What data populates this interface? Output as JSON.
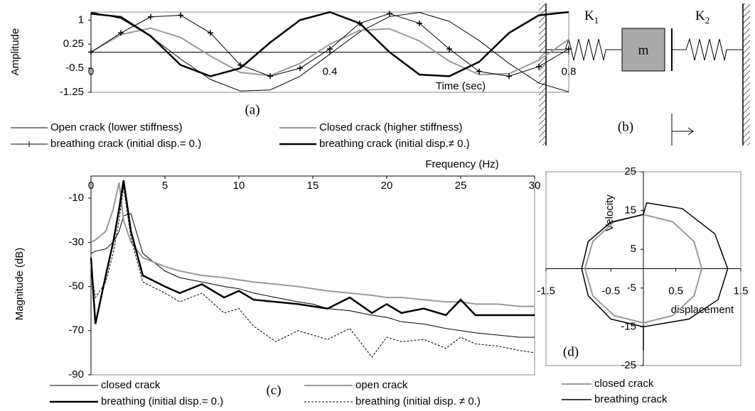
{
  "chart_data": [
    {
      "type": "line",
      "label": "(a)",
      "x_label": "Time (sec)",
      "y_label": "Amplitude",
      "x": [
        0,
        0.05,
        0.1,
        0.15,
        0.2,
        0.25,
        0.3,
        0.35,
        0.4,
        0.45,
        0.5,
        0.55,
        0.6,
        0.65,
        0.7,
        0.75,
        0.8
      ],
      "xlim": [
        0,
        0.8
      ],
      "xticks": [
        0,
        0.4,
        0.8
      ],
      "ylim": [
        -1.25,
        1.25
      ],
      "yticks": [
        -1.25,
        -0.5,
        0.25,
        1
      ],
      "series": [
        {
          "name": "Open crack (lower stiffness)",
          "color": "#000000",
          "line_width": 1,
          "line_style": "solid",
          "values": [
            1.25,
            1.05,
            0.49,
            -0.21,
            -0.85,
            -1.21,
            -1.18,
            -0.75,
            -0.06,
            0.63,
            1.11,
            1.24,
            0.96,
            0.36,
            -0.35,
            -0.96,
            -1.24
          ]
        },
        {
          "name": "Closed crack (higher stiffness)",
          "color": "#999999",
          "line_width": 2,
          "line_style": "solid",
          "values": [
            0,
            0.55,
            0.75,
            0.46,
            -0.12,
            -0.63,
            -0.73,
            -0.35,
            0.25,
            0.68,
            0.73,
            0.35,
            -0.28,
            -0.7,
            -0.67,
            -0.25,
            0.4
          ]
        },
        {
          "name": "breathing crack (initial disp.= 0.)",
          "color": "#000000",
          "line_width": 1,
          "line_style": "solid",
          "marker": "+",
          "values": [
            0,
            0.6,
            1.1,
            1.15,
            0.6,
            -0.4,
            -0.75,
            -0.5,
            0.1,
            0.9,
            1.2,
            0.9,
            0.1,
            -0.6,
            -0.75,
            -0.45,
            0.1
          ]
        },
        {
          "name": "breathing crack (initial disp.≠ 0.)",
          "color": "#000000",
          "line_width": 2.5,
          "line_style": "solid",
          "values": [
            1.2,
            1.1,
            0.5,
            -0.4,
            -0.75,
            -0.5,
            0.3,
            1.0,
            1.25,
            0.9,
            0.0,
            -0.7,
            -0.75,
            -0.3,
            0.6,
            1.15,
            1.25
          ]
        }
      ]
    },
    {
      "type": "line",
      "label": "(c)",
      "x_label": "Frequency (Hz)",
      "y_label": "Magnitude (dB)",
      "x": [
        0,
        0.3,
        1,
        1.5,
        1.9,
        2.2,
        2.7,
        3.5,
        5,
        6,
        7.5,
        9,
        10,
        11,
        12.5,
        14,
        15,
        16,
        17.5,
        19,
        20,
        21,
        22.5,
        24,
        25,
        26,
        27.5,
        29,
        30
      ],
      "xlim": [
        0,
        30
      ],
      "xticks": [
        0,
        5,
        10,
        15,
        20,
        25,
        30
      ],
      "ylim": [
        -90,
        0
      ],
      "yticks": [
        -90,
        -70,
        -50,
        -30,
        -10
      ],
      "series": [
        {
          "name": "closed crack",
          "color": "#000000",
          "line_width": 1,
          "line_style": "solid",
          "values": [
            -35,
            -34,
            -33,
            -30,
            -25,
            -18,
            -17,
            -35,
            -43,
            -46,
            -48,
            -50,
            -51,
            -53,
            -55,
            -57,
            -58,
            -60,
            -61,
            -63,
            -64,
            -66,
            -67,
            -69,
            -70,
            -71,
            -72,
            -73,
            -73
          ]
        },
        {
          "name": "open crack",
          "color": "#999999",
          "line_width": 2,
          "line_style": "solid",
          "values": [
            -30,
            -29,
            -25,
            -15,
            -3,
            -20,
            -30,
            -37,
            -41,
            -43,
            -45,
            -46,
            -47,
            -48,
            -49,
            -50,
            -51,
            -52,
            -53,
            -54,
            -55,
            -55,
            -56,
            -57,
            -57,
            -58,
            -58,
            -59,
            -59
          ]
        },
        {
          "name": "breathing (initial disp.= 0.)",
          "color": "#000000",
          "line_width": 2.5,
          "line_style": "solid",
          "values": [
            -37,
            -67,
            -45,
            -30,
            -15,
            -2,
            -25,
            -45,
            -50,
            -53,
            -49,
            -55,
            -52,
            -56,
            -57,
            -58,
            -59,
            -60,
            -55,
            -62,
            -58,
            -62,
            -60,
            -63,
            -56,
            -63,
            -63,
            -63,
            -63
          ]
        },
        {
          "name": "breathing (initial disp. ≠ 0.)",
          "color": "#000000",
          "line_width": 1,
          "line_style": "dashed",
          "values": [
            -42,
            -55,
            -48,
            -35,
            -20,
            -5,
            -28,
            -48,
            -53,
            -57,
            -53,
            -62,
            -60,
            -68,
            -75,
            -70,
            -72,
            -74,
            -69,
            -82,
            -73,
            -75,
            -74,
            -78,
            -73,
            -76,
            -77,
            -79,
            -80
          ]
        }
      ]
    },
    {
      "type": "phase",
      "label": "(d)",
      "x_label": "displacement",
      "y_label": "Velocity",
      "xlim": [
        -1.5,
        1.5
      ],
      "xticks": [
        -1.5,
        -0.5,
        0.5,
        1.5
      ],
      "ylim": [
        -25,
        25
      ],
      "yticks": [
        -25,
        -15,
        -5,
        5,
        15,
        25
      ],
      "series": [
        {
          "name": "closed crack",
          "color": "#999999",
          "line_width": 2,
          "line_style": "solid",
          "x": [
            0.9,
            0.78,
            0.45,
            0,
            -0.45,
            -0.78,
            -0.9,
            -0.78,
            -0.45,
            0,
            0.45,
            0.78,
            0.9
          ],
          "values": [
            0,
            -7,
            -12.1,
            -14,
            -12.1,
            -7,
            0,
            7,
            12.1,
            14,
            12.1,
            7,
            0
          ]
        },
        {
          "name": "breathing crack",
          "color": "#000000",
          "line_width": 1.5,
          "line_style": "solid",
          "x": [
            1.3,
            1.15,
            0.7,
            0,
            0,
            0,
            -0.5,
            -0.85,
            -0.95,
            -0.85,
            -0.5,
            0,
            0.05,
            0.6,
            1.1,
            1.3
          ],
          "values": [
            0,
            -8,
            -13,
            -15,
            -21,
            -15,
            -13,
            -7,
            0,
            7,
            12,
            14,
            17,
            15.5,
            9,
            0
          ]
        }
      ]
    }
  ],
  "diagram": {
    "springs": [
      {
        "label": "K",
        "subscript": "1"
      },
      {
        "label": "K",
        "subscript": "2"
      }
    ],
    "mass": "m",
    "label": "(b)"
  }
}
